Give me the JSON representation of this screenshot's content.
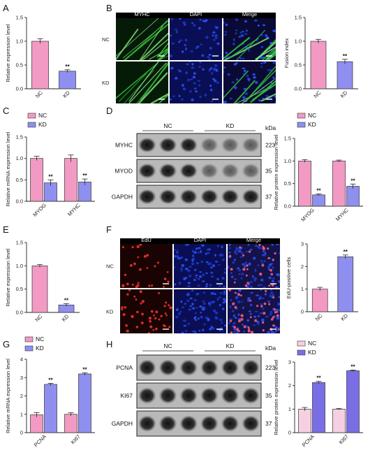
{
  "panels": {
    "A": "A",
    "B": "B",
    "C": "C",
    "D": "D",
    "E": "E",
    "F": "F",
    "G": "G",
    "H": "H"
  },
  "colors": {
    "nc": "#f29ac3",
    "kd": "#8f8ff0",
    "nc_light": "#f7cfe2",
    "kd_strong": "#7a6ee6",
    "if_green": "#2fbf3a",
    "dapi_blue": "#1f3fd8",
    "edu_red": "#e0302a"
  },
  "microscopy_B": {
    "columns": [
      "MYHC",
      "DAPI",
      "Merge"
    ],
    "rows": [
      "NC",
      "KD"
    ]
  },
  "microscopy_F": {
    "columns": [
      "EdU",
      "DAPI",
      "Merge"
    ],
    "rows": [
      "NC",
      "KD"
    ]
  },
  "blot_D": {
    "groups": [
      "NC",
      "KD"
    ],
    "unit": "kDa",
    "rows": [
      {
        "label": "MYHC",
        "kda": "223"
      },
      {
        "label": "MYOD",
        "kda": "35"
      },
      {
        "label": "GAPDH",
        "kda": "37"
      }
    ]
  },
  "blot_H": {
    "groups": [
      "NC",
      "KD"
    ],
    "unit": "kDa",
    "rows": [
      {
        "label": "PCNA",
        "kda": "223"
      },
      {
        "label": "KI67",
        "kda": "35"
      },
      {
        "label": "GAPDH",
        "kda": "37"
      }
    ]
  },
  "chart_data": [
    {
      "id": "A",
      "type": "bar",
      "categories": [
        "NC",
        "KD"
      ],
      "values": [
        1.0,
        0.37
      ],
      "errors": [
        0.05,
        0.03
      ],
      "significance": [
        "",
        "**"
      ],
      "ylabel": "Relative expression level",
      "ylim": [
        0,
        1.5
      ],
      "yticks": [
        "0.0",
        "0.5",
        "1.0",
        "1.5"
      ]
    },
    {
      "id": "B",
      "type": "bar",
      "categories": [
        "NC",
        "KD"
      ],
      "values": [
        1.0,
        0.57
      ],
      "errors": [
        0.04,
        0.05
      ],
      "significance": [
        "",
        "**"
      ],
      "ylabel": "Fusion index",
      "ylim": [
        0,
        1.5
      ],
      "yticks": [
        "0.0",
        "0.5",
        "1.0",
        "1.5"
      ]
    },
    {
      "id": "C",
      "type": "bar",
      "categories": [
        "MYOG",
        "MYHC"
      ],
      "legend": [
        "NC",
        "KD"
      ],
      "legend_position": "top-left",
      "series": [
        {
          "name": "NC",
          "values": [
            1.0,
            1.0
          ],
          "errors": [
            0.05,
            0.08
          ]
        },
        {
          "name": "KD",
          "values": [
            0.43,
            0.45
          ],
          "errors": [
            0.07,
            0.07
          ]
        }
      ],
      "significance": [
        "**",
        "**"
      ],
      "ylabel": "Relative mRNA expression level",
      "ylim": [
        0,
        1.5
      ],
      "yticks": [
        "0.0",
        "0.5",
        "1.0",
        "1.5"
      ]
    },
    {
      "id": "D",
      "type": "bar",
      "categories": [
        "MYOG",
        "MYHC"
      ],
      "legend": [
        "NC",
        "KD"
      ],
      "legend_position": "top-right",
      "series": [
        {
          "name": "NC",
          "values": [
            1.0,
            1.0
          ],
          "errors": [
            0.03,
            0.02
          ]
        },
        {
          "name": "KD",
          "values": [
            0.25,
            0.44
          ],
          "errors": [
            0.02,
            0.05
          ]
        }
      ],
      "significance": [
        "**",
        "**"
      ],
      "ylabel": "Relative protein expression level",
      "ylim": [
        0,
        1.5
      ],
      "yticks": [
        "0.0",
        "0.5",
        "1.0",
        "1.5"
      ]
    },
    {
      "id": "E",
      "type": "bar",
      "categories": [
        "NC",
        "KD"
      ],
      "values": [
        1.0,
        0.16
      ],
      "errors": [
        0.03,
        0.03
      ],
      "significance": [
        "",
        "**"
      ],
      "ylabel": "Relative expression level",
      "ylim": [
        0,
        1.5
      ],
      "yticks": [
        "0.0",
        "0.5",
        "1.0",
        "1.5"
      ]
    },
    {
      "id": "F",
      "type": "bar",
      "categories": [
        "NC",
        "KD"
      ],
      "values": [
        1.0,
        2.43
      ],
      "errors": [
        0.08,
        0.08
      ],
      "significance": [
        "",
        "**"
      ],
      "ylabel": "EdU-positive cells",
      "ylim": [
        0,
        3
      ],
      "yticks": [
        "0",
        "1",
        "2",
        "3"
      ]
    },
    {
      "id": "G",
      "type": "bar",
      "categories": [
        "PCNA",
        "KI67"
      ],
      "legend": [
        "NC",
        "KD"
      ],
      "legend_position": "top-left",
      "series": [
        {
          "name": "NC",
          "values": [
            0.97,
            1.0
          ],
          "errors": [
            0.12,
            0.08
          ]
        },
        {
          "name": "KD",
          "values": [
            2.63,
            3.2
          ],
          "errors": [
            0.06,
            0.06
          ]
        }
      ],
      "significance": [
        "**",
        "**"
      ],
      "ylabel": "Relative mRNA expression level",
      "ylim": [
        0,
        4
      ],
      "yticks": [
        "0",
        "1",
        "2",
        "3",
        "4"
      ]
    },
    {
      "id": "H",
      "type": "bar",
      "categories": [
        "PCNA",
        "KI67"
      ],
      "legend": [
        "NC",
        "KD"
      ],
      "legend_position": "top-left",
      "series": [
        {
          "name": "NC",
          "values": [
            1.0,
            1.0
          ],
          "errors": [
            0.07,
            0.03
          ]
        },
        {
          "name": "KD",
          "values": [
            2.13,
            2.63
          ],
          "errors": [
            0.05,
            0.03
          ]
        }
      ],
      "significance": [
        "**",
        "**"
      ],
      "ylabel": "Relative protein expression level",
      "ylim": [
        0,
        3
      ],
      "yticks": [
        "0",
        "1",
        "2",
        "3"
      ]
    }
  ]
}
